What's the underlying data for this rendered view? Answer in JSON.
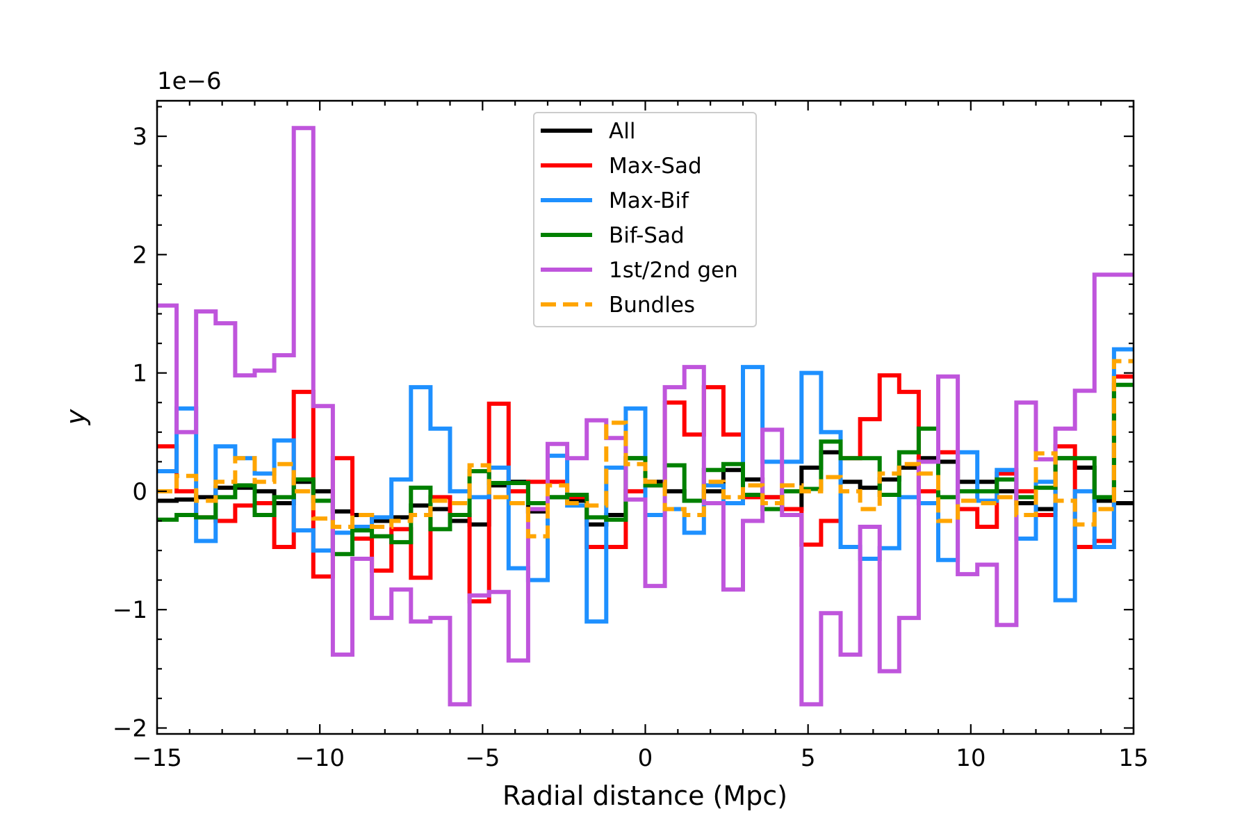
{
  "chart_data": {
    "type": "line",
    "step": true,
    "xlabel": "Radial distance (Mpc)",
    "ylabel": "y",
    "offset_text": "1e−6",
    "y_scale": 1e-06,
    "xlim": [
      -15,
      15
    ],
    "ylim": [
      -2.05,
      3.3
    ],
    "xticks": [
      -15,
      -10,
      -5,
      0,
      5,
      10,
      15
    ],
    "xtick_labels": [
      "−15",
      "−10",
      "−5",
      "0",
      "5",
      "10",
      "15"
    ],
    "yticks": [
      -2,
      -1,
      0,
      1,
      2,
      3
    ],
    "ytick_labels": [
      "−2",
      "−1",
      "0",
      "1",
      "2",
      "3"
    ],
    "grid": false,
    "legend": "upper-center",
    "bin_edges": [
      -15,
      -14.4,
      -13.8,
      -13.2,
      -12.6,
      -12,
      -11.4,
      -10.8,
      -10.2,
      -9.6,
      -9,
      -8.4,
      -7.8,
      -7.2,
      -6.6,
      -6,
      -5.4,
      -4.8,
      -4.2,
      -3.6,
      -3,
      -2.4,
      -1.8,
      -1.2,
      -0.6,
      0,
      0.6,
      1.2,
      1.8,
      2.4,
      3,
      3.6,
      4.2,
      4.8,
      5.4,
      6,
      6.6,
      7.2,
      7.8,
      8.4,
      9,
      9.6,
      10.2,
      10.8,
      11.4,
      12,
      12.6,
      13.2,
      13.8,
      14.4,
      15
    ],
    "series": [
      {
        "name": "All",
        "color": "#000000",
        "dash": "solid",
        "values": [
          -0.08,
          -0.07,
          -0.05,
          0.03,
          0.03,
          0.0,
          -0.1,
          0.08,
          0.0,
          -0.17,
          -0.2,
          -0.25,
          -0.22,
          -0.12,
          -0.15,
          -0.25,
          -0.28,
          0.05,
          0.08,
          -0.17,
          -0.05,
          -0.08,
          -0.28,
          -0.2,
          0.28,
          0.08,
          0.0,
          -0.08,
          0.0,
          0.18,
          0.1,
          -0.05,
          -0.15,
          0.2,
          0.33,
          0.08,
          0.03,
          0.1,
          0.2,
          0.28,
          0.25,
          0.08,
          0.08,
          0.0,
          -0.1,
          -0.15,
          0.28,
          0.2,
          -0.08,
          -0.1
        ]
      },
      {
        "name": "Max-Sad",
        "color": "#ff0000",
        "dash": "solid",
        "values": [
          0.38,
          0.0,
          -0.22,
          -0.25,
          -0.12,
          -0.1,
          -0.47,
          0.84,
          -0.72,
          0.28,
          -0.4,
          -0.67,
          -0.32,
          -0.73,
          -0.05,
          -0.2,
          -0.93,
          0.74,
          0.0,
          0.08,
          0.08,
          -0.05,
          -0.47,
          -0.47,
          0.0,
          0.05,
          0.75,
          0.48,
          0.88,
          0.48,
          -0.05,
          -0.05,
          -0.15,
          -0.45,
          -0.25,
          0.28,
          0.61,
          0.98,
          0.84,
          0.0,
          0.33,
          -0.15,
          -0.3,
          0.15,
          0.0,
          -0.2,
          0.38,
          -0.47,
          -0.42,
          0.97
        ]
      },
      {
        "name": "Max-Bif",
        "color": "#1e90ff",
        "dash": "solid",
        "values": [
          0.17,
          0.7,
          -0.42,
          0.38,
          0.28,
          0.15,
          0.43,
          -0.33,
          -0.5,
          -0.35,
          -0.3,
          -0.22,
          0.1,
          0.88,
          0.53,
          0.0,
          -0.05,
          0.2,
          -0.65,
          -0.75,
          0.3,
          -0.12,
          -1.1,
          0.2,
          0.7,
          -0.2,
          -0.15,
          -0.35,
          0.05,
          -0.1,
          1.05,
          0.25,
          0.25,
          1.0,
          0.5,
          -0.47,
          -0.57,
          -0.48,
          -0.05,
          -0.1,
          -0.58,
          0.33,
          -0.08,
          0.18,
          -0.4,
          0.08,
          -0.92,
          0.0,
          -0.47,
          1.2
        ]
      },
      {
        "name": "Bif-Sad",
        "color": "#008000",
        "dash": "solid",
        "values": [
          -0.24,
          -0.2,
          -0.22,
          -0.05,
          0.05,
          -0.2,
          -0.05,
          0.1,
          -0.08,
          -0.53,
          -0.33,
          -0.38,
          -0.43,
          0.03,
          -0.32,
          -0.2,
          0.17,
          0.07,
          0.07,
          -0.1,
          -0.05,
          -0.03,
          -0.22,
          -0.24,
          0.28,
          0.05,
          0.22,
          -0.08,
          0.18,
          0.23,
          -0.03,
          -0.15,
          0.0,
          0.02,
          0.42,
          0.28,
          0.28,
          -0.03,
          0.33,
          0.53,
          -0.05,
          0.0,
          0.0,
          0.1,
          -0.05,
          0.03,
          0.28,
          0.28,
          -0.05,
          0.9
        ]
      },
      {
        "name": "1st/2nd gen",
        "color": "#bf55dc",
        "dash": "solid",
        "values": [
          1.57,
          0.5,
          1.52,
          1.42,
          0.98,
          1.02,
          1.15,
          3.07,
          0.72,
          -1.38,
          -0.57,
          -1.07,
          -0.83,
          -1.1,
          -1.07,
          -1.8,
          -0.88,
          -0.85,
          -1.43,
          -0.15,
          0.4,
          0.28,
          0.6,
          0.45,
          -0.07,
          -0.8,
          0.88,
          1.05,
          -0.1,
          -0.83,
          -0.25,
          0.52,
          -0.2,
          -1.8,
          -1.03,
          -1.38,
          -0.3,
          -1.52,
          -1.07,
          0.25,
          0.97,
          -0.7,
          -0.62,
          -1.13,
          0.75,
          0.27,
          0.53,
          0.85,
          1.83,
          1.83
        ]
      },
      {
        "name": "Bundles",
        "color": "#ffa500",
        "dash": "dashed",
        "values": [
          0.0,
          0.13,
          -0.08,
          0.08,
          0.28,
          0.08,
          0.23,
          0.0,
          -0.23,
          -0.3,
          -0.2,
          -0.3,
          -0.25,
          -0.2,
          -0.08,
          -0.1,
          0.22,
          -0.05,
          -0.1,
          -0.38,
          0.05,
          -0.1,
          -0.12,
          0.58,
          0.23,
          0.08,
          -0.15,
          -0.2,
          0.08,
          -0.05,
          0.05,
          -0.1,
          0.05,
          0.0,
          0.12,
          0.0,
          -0.15,
          0.15,
          0.23,
          0.15,
          -0.25,
          -0.08,
          -0.1,
          -0.05,
          -0.2,
          0.32,
          -0.08,
          -0.28,
          -0.15,
          1.1
        ]
      }
    ]
  }
}
